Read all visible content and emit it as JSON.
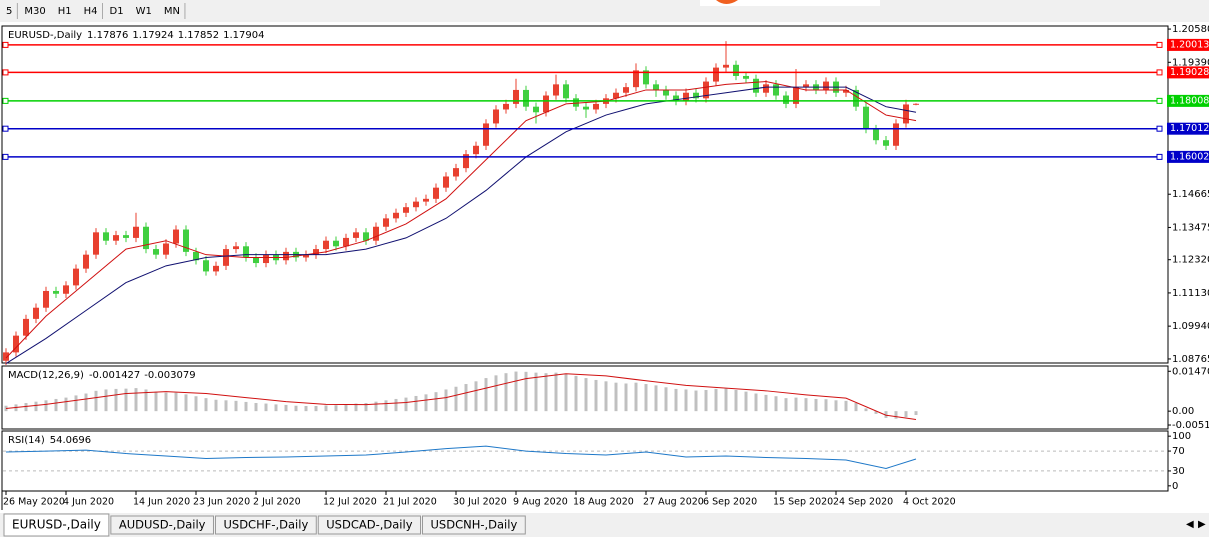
{
  "toolbar": [
    "5",
    "M30",
    "H1",
    "H4",
    "D1",
    "W1",
    "MN"
  ],
  "chart_data": [
    {
      "type": "candlestick",
      "title": "EURUSD-,Daily",
      "ohlc": [
        1.17876,
        1.17924,
        1.17852,
        1.17904
      ],
      "categories": [
        "26 May 2020",
        null,
        null,
        null,
        null,
        null,
        "4 Jun 2020",
        null,
        null,
        null,
        null,
        null,
        null,
        "14 Jun 2020",
        null,
        null,
        null,
        null,
        null,
        "23 Jun 2020",
        null,
        null,
        null,
        null,
        null,
        "2 Jul 2020",
        null,
        null,
        null,
        null,
        null,
        null,
        "12 Jul 2020",
        null,
        null,
        null,
        null,
        null,
        "21 Jul 2020",
        null,
        null,
        null,
        null,
        null,
        null,
        "30 Jul 2020",
        null,
        null,
        null,
        null,
        null,
        "9 Aug 2020",
        null,
        null,
        null,
        null,
        null,
        "18 Aug 2020",
        null,
        null,
        null,
        null,
        null,
        null,
        "27 Aug 2020",
        null,
        null,
        null,
        null,
        null,
        "6 Sep 2020",
        null,
        null,
        null,
        null,
        null,
        null,
        "15 Sep 2020",
        null,
        null,
        null,
        null,
        null,
        "24 Sep 2020",
        null,
        null,
        null,
        null,
        null,
        null,
        "4 Oct 2020",
        null
      ],
      "candles": [
        [
          1.087,
          1.0915,
          1.0855,
          1.09
        ],
        [
          1.09,
          1.0975,
          1.0885,
          1.096
        ],
        [
          1.096,
          1.1035,
          1.0945,
          1.102
        ],
        [
          1.102,
          1.1075,
          1.1005,
          1.106
        ],
        [
          1.106,
          1.1135,
          1.1045,
          1.112
        ],
        [
          1.112,
          1.1135,
          1.1095,
          1.111
        ],
        [
          1.111,
          1.1155,
          1.1095,
          1.114
        ],
        [
          1.114,
          1.1215,
          1.1125,
          1.12
        ],
        [
          1.12,
          1.1265,
          1.1185,
          1.125
        ],
        [
          1.125,
          1.1345,
          1.1235,
          1.133
        ],
        [
          1.133,
          1.1345,
          1.1285,
          1.13
        ],
        [
          1.13,
          1.1335,
          1.1285,
          1.132
        ],
        [
          1.132,
          1.1335,
          1.1295,
          1.131
        ],
        [
          1.131,
          1.14,
          1.1295,
          1.135
        ],
        [
          1.135,
          1.1365,
          1.1255,
          1.127
        ],
        [
          1.127,
          1.1285,
          1.1235,
          1.125
        ],
        [
          1.125,
          1.1305,
          1.1235,
          1.129
        ],
        [
          1.129,
          1.1355,
          1.1275,
          1.134
        ],
        [
          1.134,
          1.1355,
          1.1245,
          1.126
        ],
        [
          1.126,
          1.1275,
          1.1215,
          1.123
        ],
        [
          1.123,
          1.1245,
          1.1175,
          1.119
        ],
        [
          1.119,
          1.1225,
          1.1175,
          1.121
        ],
        [
          1.121,
          1.1285,
          1.1195,
          1.127
        ],
        [
          1.127,
          1.1295,
          1.1255,
          1.128
        ],
        [
          1.128,
          1.1295,
          1.1225,
          1.124
        ],
        [
          1.124,
          1.1255,
          1.1205,
          1.122
        ],
        [
          1.122,
          1.1265,
          1.1205,
          1.125
        ],
        [
          1.125,
          1.1265,
          1.1215,
          1.123
        ],
        [
          1.123,
          1.1275,
          1.1215,
          1.126
        ],
        [
          1.126,
          1.1275,
          1.1225,
          1.124
        ],
        [
          1.124,
          1.1265,
          1.1225,
          1.125
        ],
        [
          1.125,
          1.1285,
          1.1235,
          1.127
        ],
        [
          1.127,
          1.1315,
          1.1255,
          1.13
        ],
        [
          1.13,
          1.1315,
          1.1265,
          1.128
        ],
        [
          1.128,
          1.1325,
          1.1265,
          1.131
        ],
        [
          1.131,
          1.1345,
          1.1295,
          1.133
        ],
        [
          1.133,
          1.1345,
          1.1285,
          1.13
        ],
        [
          1.13,
          1.1365,
          1.1285,
          1.135
        ],
        [
          1.135,
          1.1395,
          1.1335,
          1.138
        ],
        [
          1.138,
          1.1415,
          1.1365,
          1.14
        ],
        [
          1.14,
          1.1435,
          1.1385,
          1.142
        ],
        [
          1.142,
          1.1455,
          1.1405,
          1.144
        ],
        [
          1.144,
          1.1465,
          1.1425,
          1.145
        ],
        [
          1.145,
          1.1505,
          1.1435,
          1.149
        ],
        [
          1.149,
          1.1545,
          1.1475,
          1.153
        ],
        [
          1.153,
          1.1575,
          1.1515,
          1.156
        ],
        [
          1.156,
          1.1625,
          1.1545,
          1.161
        ],
        [
          1.161,
          1.1655,
          1.1595,
          1.164
        ],
        [
          1.164,
          1.1735,
          1.1625,
          1.172
        ],
        [
          1.172,
          1.1785,
          1.1705,
          1.177
        ],
        [
          1.177,
          1.1805,
          1.1755,
          1.179
        ],
        [
          1.179,
          1.188,
          1.1775,
          1.184
        ],
        [
          1.184,
          1.1855,
          1.1765,
          1.178
        ],
        [
          1.178,
          1.1795,
          1.172,
          1.176
        ],
        [
          1.176,
          1.1835,
          1.1745,
          1.182
        ],
        [
          1.182,
          1.1895,
          1.1805,
          1.186
        ],
        [
          1.186,
          1.1875,
          1.1795,
          1.181
        ],
        [
          1.181,
          1.1825,
          1.1765,
          1.178
        ],
        [
          1.178,
          1.1795,
          1.174,
          1.177
        ],
        [
          1.177,
          1.1805,
          1.1755,
          1.179
        ],
        [
          1.179,
          1.1825,
          1.1775,
          1.181
        ],
        [
          1.181,
          1.1845,
          1.1795,
          1.183
        ],
        [
          1.183,
          1.1865,
          1.1815,
          1.185
        ],
        [
          1.185,
          1.1935,
          1.1835,
          1.191
        ],
        [
          1.191,
          1.1925,
          1.1845,
          1.186
        ],
        [
          1.186,
          1.1875,
          1.1815,
          1.184
        ],
        [
          1.184,
          1.1855,
          1.1805,
          1.182
        ],
        [
          1.182,
          1.1835,
          1.1785,
          1.18
        ],
        [
          1.18,
          1.1845,
          1.1785,
          1.183
        ],
        [
          1.183,
          1.1845,
          1.1795,
          1.181
        ],
        [
          1.181,
          1.1885,
          1.1795,
          1.187
        ],
        [
          1.187,
          1.1935,
          1.1855,
          1.192
        ],
        [
          1.192,
          1.2015,
          1.1905,
          1.193
        ],
        [
          1.193,
          1.1945,
          1.1875,
          1.189
        ],
        [
          1.189,
          1.1905,
          1.1865,
          1.188
        ],
        [
          1.188,
          1.1895,
          1.1815,
          1.183
        ],
        [
          1.183,
          1.1875,
          1.1815,
          1.186
        ],
        [
          1.186,
          1.1875,
          1.1805,
          1.182
        ],
        [
          1.182,
          1.1835,
          1.1775,
          1.179
        ],
        [
          1.179,
          1.1915,
          1.1775,
          1.185
        ],
        [
          1.185,
          1.1875,
          1.1835,
          1.186
        ],
        [
          1.186,
          1.1875,
          1.1825,
          1.184
        ],
        [
          1.184,
          1.1885,
          1.1825,
          1.187
        ],
        [
          1.187,
          1.1885,
          1.1815,
          1.183
        ],
        [
          1.183,
          1.1855,
          1.1815,
          1.184
        ],
        [
          1.184,
          1.1855,
          1.1765,
          1.178
        ],
        [
          1.178,
          1.1795,
          1.1685,
          1.17
        ],
        [
          1.17,
          1.1715,
          1.1645,
          1.166
        ],
        [
          1.166,
          1.1675,
          1.1625,
          1.164
        ],
        [
          1.164,
          1.1735,
          1.1625,
          1.172
        ],
        [
          1.172,
          1.1805,
          1.1705,
          1.1788
        ],
        [
          1.17876,
          1.17924,
          1.17852,
          1.17904
        ]
      ],
      "up_color": "#e8402f",
      "down_color": "#3fcf3f",
      "ylim": [
        1.0862,
        1.2069
      ],
      "yticks": [
        {
          "value": 1.2058,
          "label": "1.20580"
        },
        {
          "value": 1.1939,
          "label": "1.19390"
        },
        {
          "value": 1.14665,
          "label": "1.14665"
        },
        {
          "value": 1.13475,
          "label": "1.13475"
        },
        {
          "value": 1.1232,
          "label": "1.12320"
        },
        {
          "value": 1.1113,
          "label": "1.11130"
        },
        {
          "value": 1.0994,
          "label": "1.09940"
        },
        {
          "value": 1.08765,
          "label": "1.08765"
        }
      ],
      "levels": {
        "values": [
          1.20013,
          1.19028,
          1.18008,
          1.17012,
          1.16002
        ],
        "colors": [
          "#ff0000",
          "#ff0000",
          "#00d000",
          "#0000c8",
          "#0000c8"
        ]
      },
      "ma": [
        {
          "color": "#d01010",
          "x": [
            0,
            4,
            8,
            12,
            16,
            20,
            24,
            28,
            32,
            36,
            40,
            44,
            48,
            52,
            56,
            60,
            64,
            68,
            72,
            76,
            80,
            84,
            88,
            91
          ],
          "values": [
            1.088,
            1.103,
            1.115,
            1.127,
            1.13,
            1.125,
            1.124,
            1.124,
            1.126,
            1.13,
            1.136,
            1.145,
            1.159,
            1.173,
            1.179,
            1.18,
            1.184,
            1.184,
            1.186,
            1.187,
            1.184,
            1.184,
            1.175,
            1.173
          ]
        },
        {
          "color": "#101070",
          "x": [
            0,
            4,
            8,
            12,
            16,
            20,
            24,
            28,
            32,
            36,
            40,
            44,
            48,
            52,
            56,
            60,
            64,
            68,
            72,
            76,
            80,
            84,
            88,
            91
          ],
          "values": [
            1.086,
            1.095,
            1.105,
            1.115,
            1.121,
            1.124,
            1.125,
            1.125,
            1.125,
            1.127,
            1.131,
            1.138,
            1.148,
            1.16,
            1.169,
            1.175,
            1.179,
            1.181,
            1.183,
            1.185,
            1.185,
            1.185,
            1.178,
            1.176
          ]
        }
      ]
    },
    {
      "type": "macd",
      "title": "MACD(12,26,9)",
      "readout": [
        -0.001427,
        -0.003079
      ],
      "values": [
        0.002,
        0.0025,
        0.003,
        0.0035,
        0.004,
        0.0045,
        0.005,
        0.0058,
        0.0065,
        0.0075,
        0.008,
        0.0082,
        0.0083,
        0.0085,
        0.008,
        0.0072,
        0.0068,
        0.0068,
        0.0062,
        0.0055,
        0.0048,
        0.0042,
        0.004,
        0.0038,
        0.0034,
        0.003,
        0.0028,
        0.0025,
        0.0023,
        0.002,
        0.0019,
        0.0019,
        0.0021,
        0.0022,
        0.0025,
        0.0028,
        0.003,
        0.0035,
        0.004,
        0.0045,
        0.005,
        0.0056,
        0.0062,
        0.007,
        0.008,
        0.009,
        0.01,
        0.011,
        0.0122,
        0.0132,
        0.014,
        0.0146,
        0.0145,
        0.0142,
        0.014,
        0.0142,
        0.0138,
        0.013,
        0.0122,
        0.0115,
        0.011,
        0.0105,
        0.0102,
        0.0105,
        0.01,
        0.0095,
        0.0088,
        0.0082,
        0.008,
        0.0076,
        0.0078,
        0.0082,
        0.0083,
        0.0078,
        0.0072,
        0.0065,
        0.006,
        0.0055,
        0.0048,
        0.005,
        0.0048,
        0.0045,
        0.0044,
        0.004,
        0.0038,
        0.003,
        0.001,
        -0.001,
        -0.0025,
        -0.0028,
        -0.0022,
        -0.001427
      ],
      "color": "#c0c0c0",
      "signal": {
        "color": "#d01010",
        "x": [
          0,
          4,
          8,
          12,
          16,
          20,
          24,
          28,
          32,
          36,
          40,
          44,
          48,
          52,
          56,
          60,
          64,
          68,
          72,
          76,
          80,
          84,
          88,
          91
        ],
        "values": [
          0.001,
          0.0025,
          0.0045,
          0.0065,
          0.0072,
          0.0065,
          0.005,
          0.0035,
          0.0025,
          0.0024,
          0.0032,
          0.005,
          0.0085,
          0.012,
          0.0138,
          0.013,
          0.0112,
          0.0095,
          0.0085,
          0.0075,
          0.006,
          0.0048,
          -0.0015,
          -0.003079
        ]
      },
      "ylim": [
        -0.00658,
        0.01665
      ],
      "yticks": [
        0.014706,
        {
          "value": 0,
          "label": "0.00"
        },
        -0.005113
      ]
    },
    {
      "type": "line",
      "title": "RSI(14)",
      "readout": 54.0696,
      "x": [
        0,
        4,
        8,
        12,
        16,
        20,
        24,
        28,
        32,
        36,
        40,
        44,
        48,
        52,
        56,
        60,
        64,
        68,
        72,
        76,
        80,
        84,
        88,
        91
      ],
      "values": [
        68,
        70,
        72,
        65,
        60,
        55,
        57,
        58,
        60,
        62,
        68,
        75,
        80,
        70,
        65,
        62,
        68,
        58,
        60,
        57,
        55,
        52,
        35,
        54.0696
      ],
      "color": "#1e78c8",
      "ylim": [
        -10.4,
        110.4
      ],
      "yticks": [
        100,
        70,
        30,
        0
      ],
      "levels": [
        70,
        30
      ]
    }
  ],
  "tabs": [
    "EURUSD-,Daily",
    "AUDUSD-,Daily",
    "USDCHF-,Daily",
    "USDCAD-,Daily",
    "USDCNH-,Daily"
  ]
}
